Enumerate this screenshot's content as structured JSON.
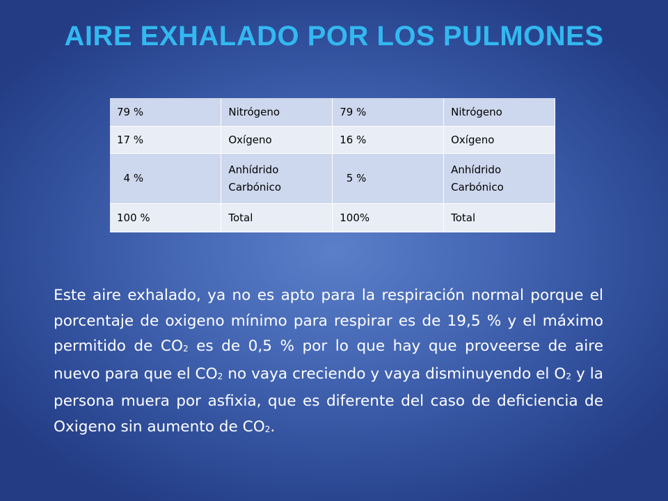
{
  "slide": {
    "title": "AIRE EXHALADO POR LOS PULMONES"
  },
  "table": {
    "rows": [
      [
        "79 %",
        "Nitrógeno",
        "79 %",
        "Nitrógeno"
      ],
      [
        "17 %",
        "Oxígeno",
        "16 %",
        "Oxígeno"
      ],
      [
        "  4 %",
        "Anhídrido Carbónico",
        "  5 %",
        "Anhídrido Carbónico"
      ],
      [
        "100 %",
        "Total",
        "100%",
        "Total"
      ]
    ]
  },
  "paragraph": {
    "s1": "Este aire exhalado, ya no es apto para la respiración normal porque el porcentaje de oxigeno mínimo para respirar es de 19,5 % y el máximo permitido de CO",
    "sub1": "2",
    "s2": " es de 0,5 % por lo que hay que proveerse de aire nuevo para que el CO",
    "sub2": "2",
    "s3": " no vaya creciendo y vaya disminuyendo el O",
    "sub3": "2",
    "s4": " y la persona muera por asfixia, que es diferente del caso de deficiencia de Oxigeno sin aumento de CO",
    "sub4": "2",
    "s5": "."
  }
}
